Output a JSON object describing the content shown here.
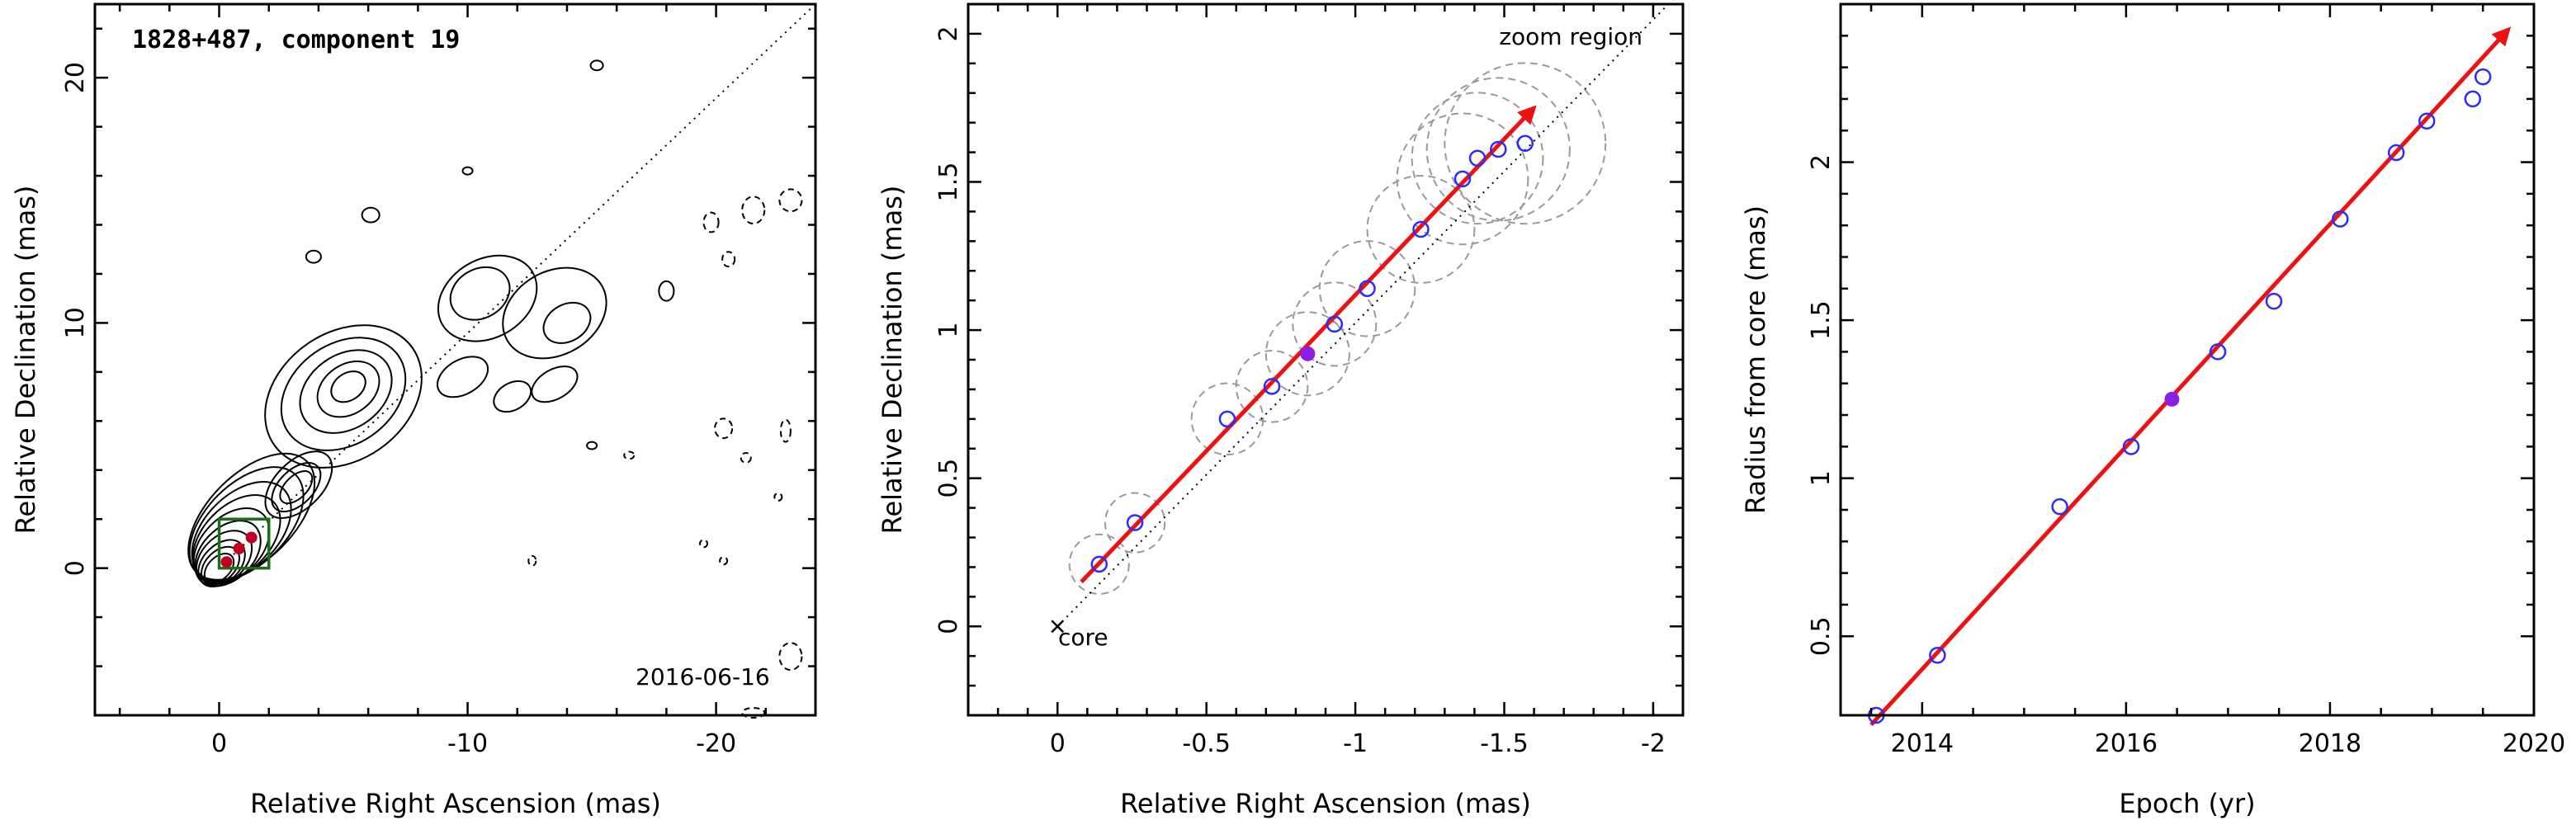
{
  "chart_data": [
    {
      "type": "contour",
      "title": "1828+487, component 19",
      "date_label": "2016-06-16",
      "xlabel": "Relative Right Ascension (mas)",
      "ylabel": "Relative Declination (mas)",
      "xlim": [
        5,
        -24
      ],
      "ylim": [
        -6,
        23
      ],
      "xticks": [
        0,
        -10,
        -20
      ],
      "yticks": [
        0,
        10,
        20
      ],
      "jet_axis_line": [
        [
          0,
          0
        ],
        [
          -24,
          23
        ]
      ],
      "zoom_box": {
        "x": [
          0,
          -2
        ],
        "y": [
          0,
          2
        ]
      },
      "component_points": [
        {
          "x": -0.3,
          "y": 0.25
        },
        {
          "x": -0.8,
          "y": 0.8
        },
        {
          "x": -1.3,
          "y": 1.25
        }
      ],
      "beam_color": "#c00020",
      "box_color": "#1a6e1a"
    },
    {
      "type": "scatter",
      "xlabel": "Relative Right Ascension (mas)",
      "ylabel": "Relative Declination (mas)",
      "xlim": [
        0.3,
        -2.1
      ],
      "ylim": [
        -0.3,
        2.1
      ],
      "xticks": [
        0,
        -0.5,
        -1,
        -1.5,
        -2
      ],
      "yticks": [
        0,
        0.5,
        1,
        1.5,
        2
      ],
      "annotations": {
        "zoom": "zoom region",
        "core": "core"
      },
      "points": [
        {
          "x": -0.14,
          "y": 0.21,
          "r": 0.1
        },
        {
          "x": -0.26,
          "y": 0.35,
          "r": 0.1
        },
        {
          "x": -0.57,
          "y": 0.7,
          "r": 0.12
        },
        {
          "x": -0.72,
          "y": 0.81,
          "r": 0.12
        },
        {
          "x": -0.84,
          "y": 0.92,
          "r": 0.14,
          "highlight": true
        },
        {
          "x": -0.93,
          "y": 1.02,
          "r": 0.14
        },
        {
          "x": -1.04,
          "y": 1.14,
          "r": 0.16
        },
        {
          "x": -1.22,
          "y": 1.34,
          "r": 0.18
        },
        {
          "x": -1.36,
          "y": 1.51,
          "r": 0.22
        },
        {
          "x": -1.41,
          "y": 1.58,
          "r": 0.22
        },
        {
          "x": -1.48,
          "y": 1.61,
          "r": 0.24
        },
        {
          "x": -1.57,
          "y": 1.63,
          "r": 0.27
        }
      ],
      "fit_arrow": {
        "from": [
          -0.08,
          0.15
        ],
        "to": [
          -1.6,
          1.75
        ]
      },
      "dotted_line": {
        "from": [
          0,
          0
        ],
        "to": [
          -2.1,
          2.15
        ]
      },
      "point_color": "#2b2bff",
      "highlight_color": "#8a20e8",
      "arrow_color": "#ee1111"
    },
    {
      "type": "scatter",
      "xlabel": "Epoch (yr)",
      "ylabel": "Radius from core (mas)",
      "xlim": [
        2013.2,
        2020.0
      ],
      "ylim": [
        0.25,
        2.5
      ],
      "xticks": [
        2014,
        2016,
        2018,
        2020
      ],
      "xtick_labels": [
        "2014",
        "2016",
        "2018",
        "2020"
      ],
      "yticks": [
        0.5,
        1,
        1.5,
        2
      ],
      "yticks_minor": [
        0.6,
        0.7,
        0.8,
        0.9,
        1.1,
        1.2,
        1.3,
        1.4,
        1.6,
        1.7,
        1.8,
        1.9,
        2.1,
        2.2,
        2.3,
        2.4
      ],
      "points": [
        {
          "x": 2013.55,
          "y": 0.25
        },
        {
          "x": 2014.15,
          "y": 0.44
        },
        {
          "x": 2015.35,
          "y": 0.91
        },
        {
          "x": 2016.05,
          "y": 1.1
        },
        {
          "x": 2016.45,
          "y": 1.25,
          "highlight": true
        },
        {
          "x": 2016.9,
          "y": 1.4
        },
        {
          "x": 2017.45,
          "y": 1.56
        },
        {
          "x": 2018.1,
          "y": 1.82
        },
        {
          "x": 2018.65,
          "y": 2.03
        },
        {
          "x": 2018.95,
          "y": 2.13
        },
        {
          "x": 2019.4,
          "y": 2.2
        },
        {
          "x": 2019.5,
          "y": 2.27
        }
      ],
      "fit_arrow": {
        "from": [
          2013.5,
          0.22
        ],
        "to": [
          2019.75,
          2.42
        ]
      },
      "point_color": "#2b2bff",
      "highlight_color": "#8a20e8",
      "arrow_color": "#ee1111"
    }
  ]
}
